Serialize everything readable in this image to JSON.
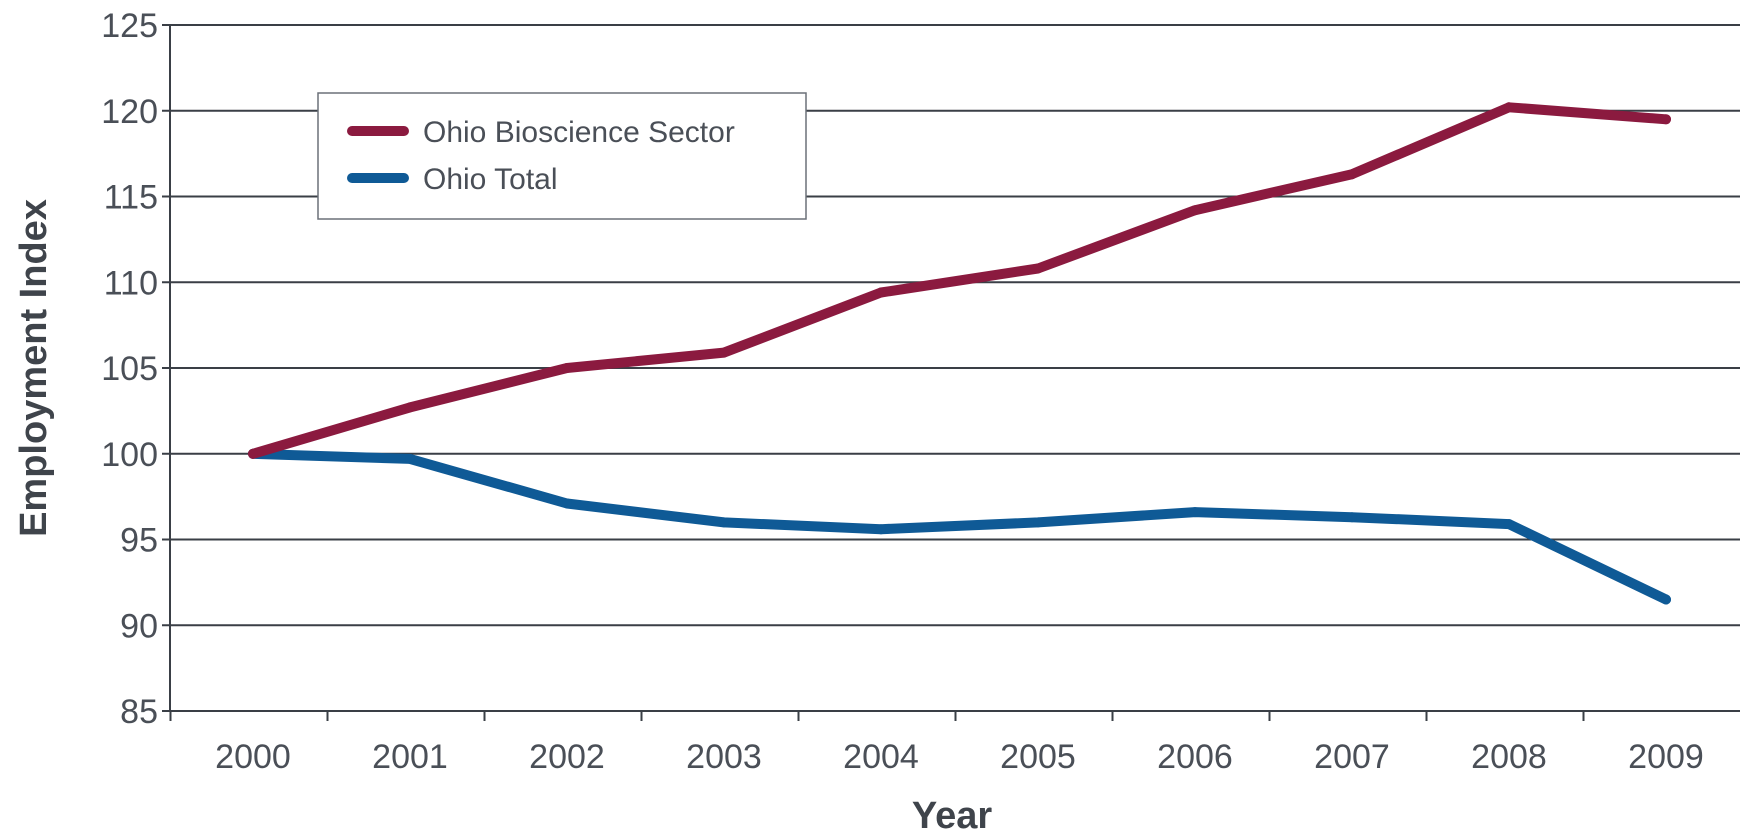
{
  "chart_data": {
    "type": "line",
    "title": "",
    "xlabel": "Year",
    "ylabel": "Employment Index",
    "categories": [
      "2000",
      "2001",
      "2002",
      "2003",
      "2004",
      "2005",
      "2006",
      "2007",
      "2008",
      "2009"
    ],
    "ylim": [
      85,
      125
    ],
    "yticks": [
      85,
      90,
      95,
      100,
      105,
      110,
      115,
      120,
      125
    ],
    "grid": true,
    "legend_position": "top-left",
    "series": [
      {
        "name": "Ohio Bioscience Sector",
        "color": "#8b1a3f",
        "values": [
          100,
          102.7,
          105.0,
          105.9,
          109.4,
          110.8,
          114.2,
          116.3,
          120.2,
          119.5
        ]
      },
      {
        "name": "Ohio Total",
        "color": "#0f5a96",
        "values": [
          100,
          99.7,
          97.1,
          96.0,
          95.6,
          96.0,
          96.6,
          96.3,
          95.9,
          91.5
        ]
      }
    ]
  }
}
